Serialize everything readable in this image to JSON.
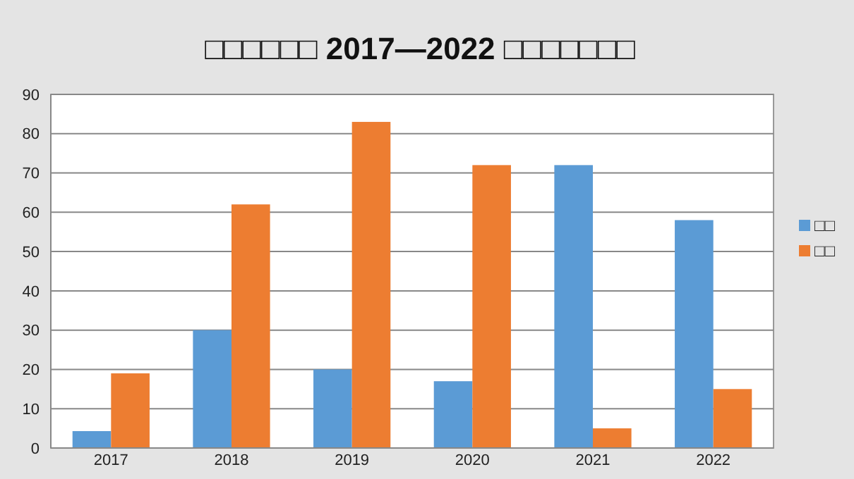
{
  "chart_data": {
    "type": "bar",
    "title": "□□□□□□ 2017—2022 □□□□□□□",
    "categories": [
      "2017",
      "2018",
      "2019",
      "2020",
      "2021",
      "2022"
    ],
    "series": [
      {
        "name": "□□",
        "color": "#5b9bd5",
        "values": [
          4.3,
          30,
          20,
          17,
          72,
          58
        ]
      },
      {
        "name": "□□",
        "color": "#ed7d31",
        "values": [
          19,
          62,
          83,
          72,
          5,
          15
        ]
      }
    ],
    "ylim": [
      0,
      90
    ],
    "yticks": [
      0,
      10,
      20,
      30,
      40,
      50,
      60,
      70,
      80,
      90
    ],
    "grid": "y",
    "legend": "right"
  }
}
